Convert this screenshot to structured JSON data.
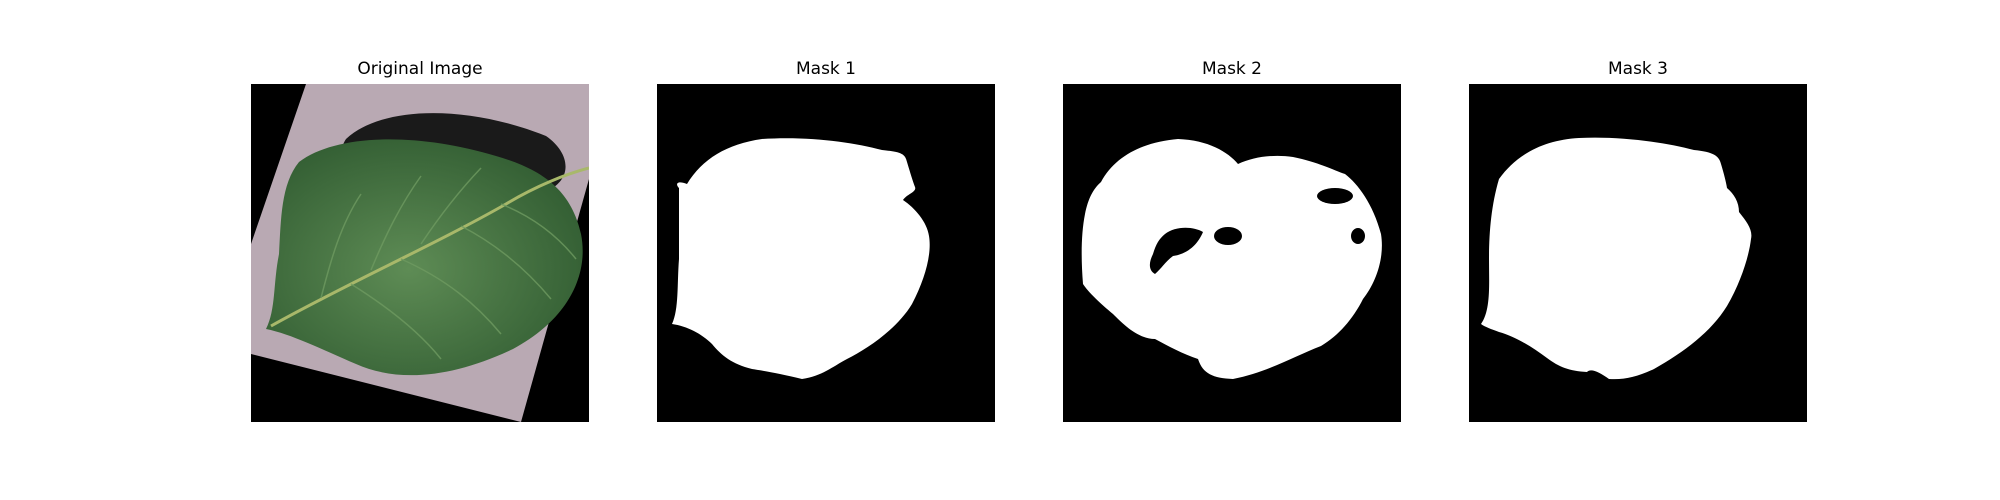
{
  "figure": {
    "panels": [
      {
        "title": "Original Image"
      },
      {
        "title": "Mask 1"
      },
      {
        "title": "Mask 2"
      },
      {
        "title": "Mask 3"
      }
    ]
  },
  "colors": {
    "background": "#ffffff",
    "mask_background": "#000000",
    "mask_foreground": "#ffffff",
    "leaf_dark": "#2f5a30",
    "leaf_light": "#5e8c55",
    "paper": "#b9a9b3",
    "shadow": "#1a1a1a"
  }
}
